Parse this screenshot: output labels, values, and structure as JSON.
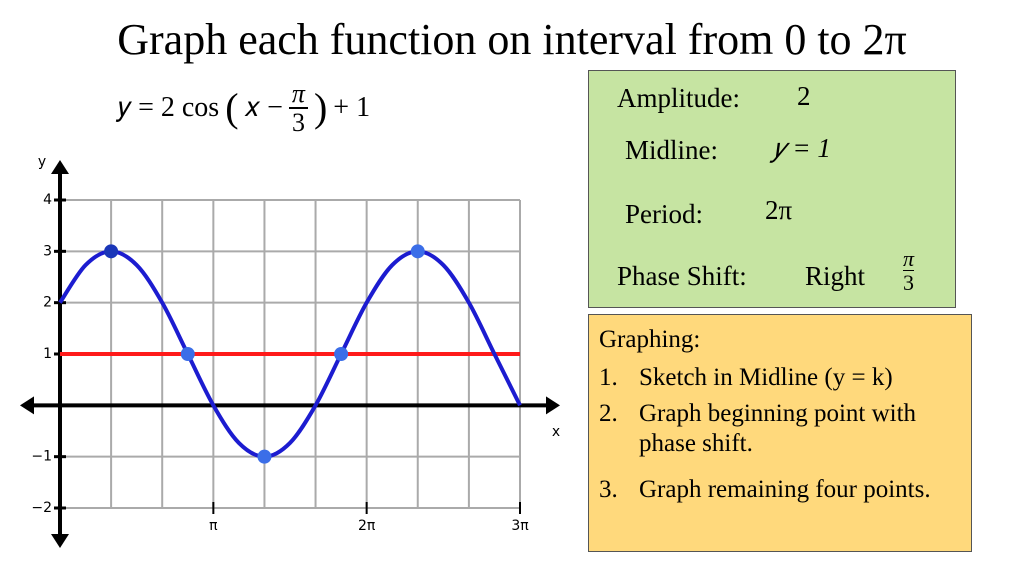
{
  "title": "Graph each function on interval from 0 to 2π",
  "equation": [
    "𝑦 = 2 cos",
    "(",
    "𝑥 −",
    "π",
    "3",
    ")",
    "+ 1"
  ],
  "info": {
    "amplitude_label": "Amplitude:",
    "amplitude": "2",
    "midline_label": "Midline:",
    "midline": "𝑦 = 1",
    "period_label": "Period:",
    "period": "2π",
    "phase_label": "Phase Shift:",
    "phase_dir": "Right",
    "phase_num": "π",
    "phase_den": "3"
  },
  "steps": {
    "heading": "Graphing:",
    "items": [
      {
        "n": "1.",
        "text": "Sketch in Midline (y = k)"
      },
      {
        "n": "2.",
        "text": "Graph beginning point with phase shift."
      },
      {
        "n": "3.",
        "text": "Graph remaining four points."
      }
    ]
  },
  "chart_data": {
    "type": "line",
    "x_label": "x",
    "y_label": "y",
    "xlim": [
      0,
      9.425
    ],
    "ylim": [
      -2,
      4
    ],
    "xticks": [
      {
        "value": 3.142,
        "label": "π"
      },
      {
        "value": 6.283,
        "label": "2π"
      },
      {
        "value": 9.425,
        "label": "3π"
      }
    ],
    "xgrid": [
      0,
      1.047,
      2.094,
      3.142,
      4.189,
      5.236,
      6.283,
      7.33,
      8.378,
      9.425
    ],
    "yticks": [
      {
        "value": -2,
        "label": "−2"
      },
      {
        "value": -1,
        "label": "−1"
      },
      1,
      2,
      3,
      4
    ],
    "grid": true,
    "series": [
      {
        "color": "#1c1cd0",
        "x": [
          0,
          0.524,
          1.047,
          1.571,
          2.094,
          2.618,
          3.142,
          3.665,
          4.189,
          4.712,
          5.236,
          5.76,
          6.283,
          6.807,
          7.33,
          7.854,
          8.378,
          8.901,
          9.425
        ],
        "values": [
          2,
          2.732,
          3,
          2.732,
          2,
          1,
          0,
          -0.732,
          -1,
          -0.732,
          0,
          1,
          2,
          2.732,
          3,
          2.732,
          2,
          1,
          0
        ]
      },
      {
        "color": "#ff1a1a",
        "x": [
          0,
          9.425
        ],
        "values": [
          1,
          1
        ]
      },
      {
        "markers": true,
        "colors": [
          "#1a36b8",
          "#3b6ee8",
          "#3b6ee8",
          "#3b6ee8",
          "#3b6ee8"
        ],
        "x": [
          1.047,
          2.618,
          4.189,
          5.76,
          7.33
        ],
        "values": [
          3,
          1,
          -1,
          1,
          3
        ]
      }
    ]
  }
}
